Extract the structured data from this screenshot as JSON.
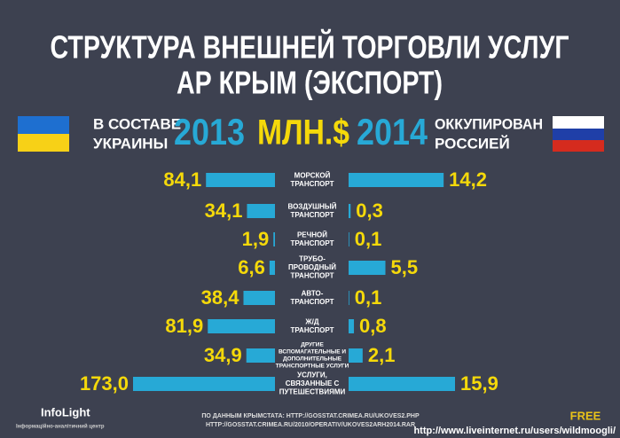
{
  "chart_data": {
    "type": "butterfly-bar",
    "title": [
      "СТРУКТУРА ВНЕШНЕЙ ТОРГОВЛИ УСЛУГ",
      "АР КРЫМ (ЭКСПОРТ)"
    ],
    "unit": "МЛН.$",
    "left_label": [
      "В СОСТАВЕ",
      "УКРАИНЫ"
    ],
    "right_label": [
      "ОККУПИРОВАН",
      "РОССИЕЙ"
    ],
    "categories": [
      [
        "МОРСКОЙ",
        "ТРАНСПОРТ"
      ],
      [
        "ВОЗДУШНЫЙ",
        "ТРАНСПОРТ"
      ],
      [
        "РЕЧНОЙ",
        "ТРАНСПОРТ"
      ],
      [
        "ТРУБО-",
        "ПРОВОДНЫЙ",
        "ТРАНСПОРТ"
      ],
      [
        "АВТО-",
        "ТРАНСПОРТ"
      ],
      [
        "Ж/Д",
        "ТРАНСПОРТ"
      ],
      [
        "ДРУГИЕ",
        "ВСПОМАГАТЕЛЬНЫЕ И",
        "ДОПОЛНИТЕЛЬНЫЕ",
        "ТРАНСПОРТНЫЕ УСЛУГИ"
      ],
      [
        "УСЛУГИ,",
        "СВЯЗАННЫЕ С",
        "ПУТЕШЕСТВИЯМИ"
      ]
    ],
    "series": [
      {
        "name": "2013",
        "color": "#27a9d6",
        "values": [
          84.1,
          34.1,
          1.9,
          6.6,
          38.4,
          81.9,
          34.9,
          173.0
        ],
        "value_labels": [
          "84,1",
          "34,1",
          "1,9",
          "6,6",
          "38,4",
          "81,9",
          "34,9",
          "173,0"
        ]
      },
      {
        "name": "2014",
        "color": "#27a9d6",
        "values": [
          14.2,
          0.3,
          0.1,
          5.5,
          0.1,
          0.8,
          2.1,
          15.9
        ],
        "value_labels": [
          "14,2",
          "0,3",
          "0,1",
          "5,5",
          "0,1",
          "0,8",
          "2,1",
          "15,9"
        ]
      }
    ],
    "source": [
      "ПО ДАННЫМ КРЫМСТАТА: HTTP://GOSSTAT.CRIMEA.RU/UKOVES2.PHP",
      "HTTP://GOSSTAT.CRIMEA.RU/2010/OPERATIV/UKOVES2ARH2014.RAR"
    ],
    "logo": [
      "InfoLight",
      "Інформаційно-аналітичний центр"
    ],
    "watermark": "http://www.liveinternet.ru/users/wildmoogli/",
    "badge": "FREE"
  }
}
